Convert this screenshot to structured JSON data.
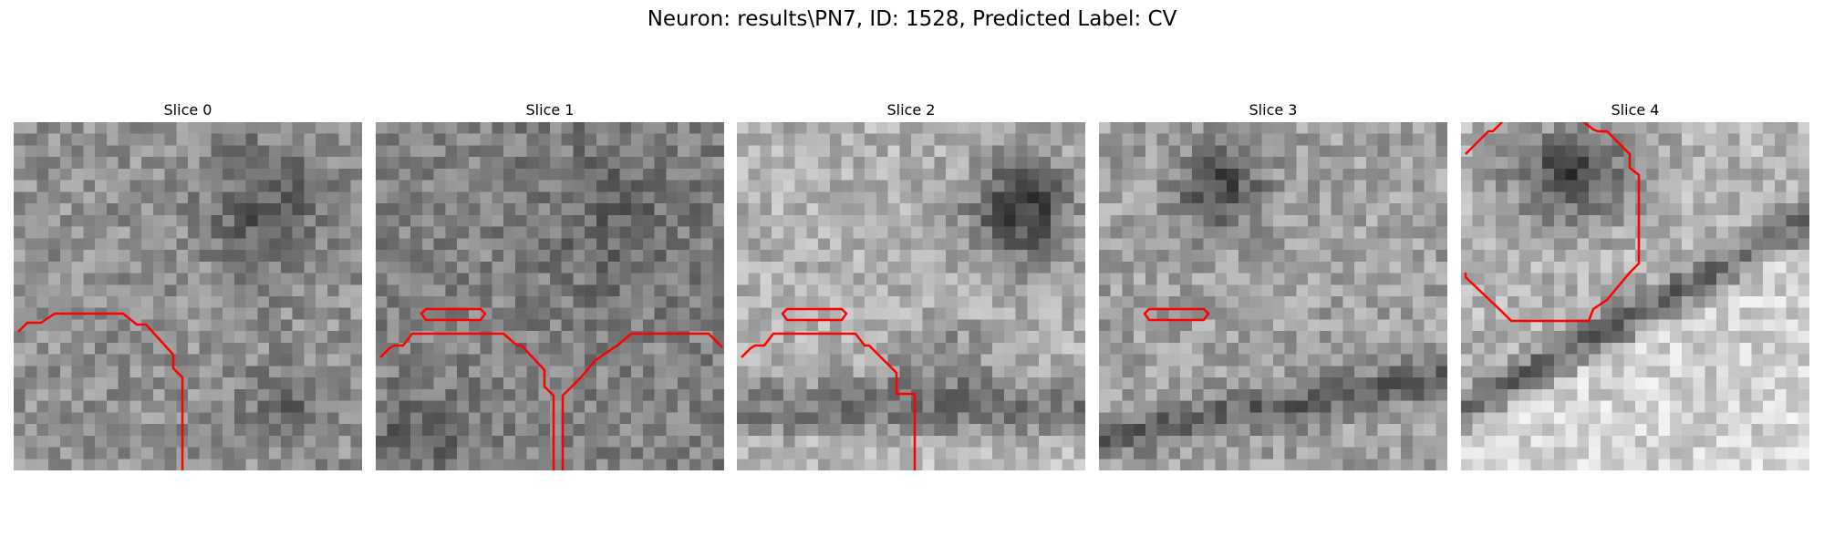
{
  "figure": {
    "title": "Neuron: results\\PN7, ID: 1528, Predicted Label: CV"
  },
  "colors": {
    "contour": "#ff0000",
    "background": "#ffffff"
  },
  "slices": [
    {
      "title": "Slice 0"
    },
    {
      "title": "Slice 1"
    },
    {
      "title": "Slice 2"
    },
    {
      "title": "Slice 3"
    },
    {
      "title": "Slice 4"
    }
  ]
}
